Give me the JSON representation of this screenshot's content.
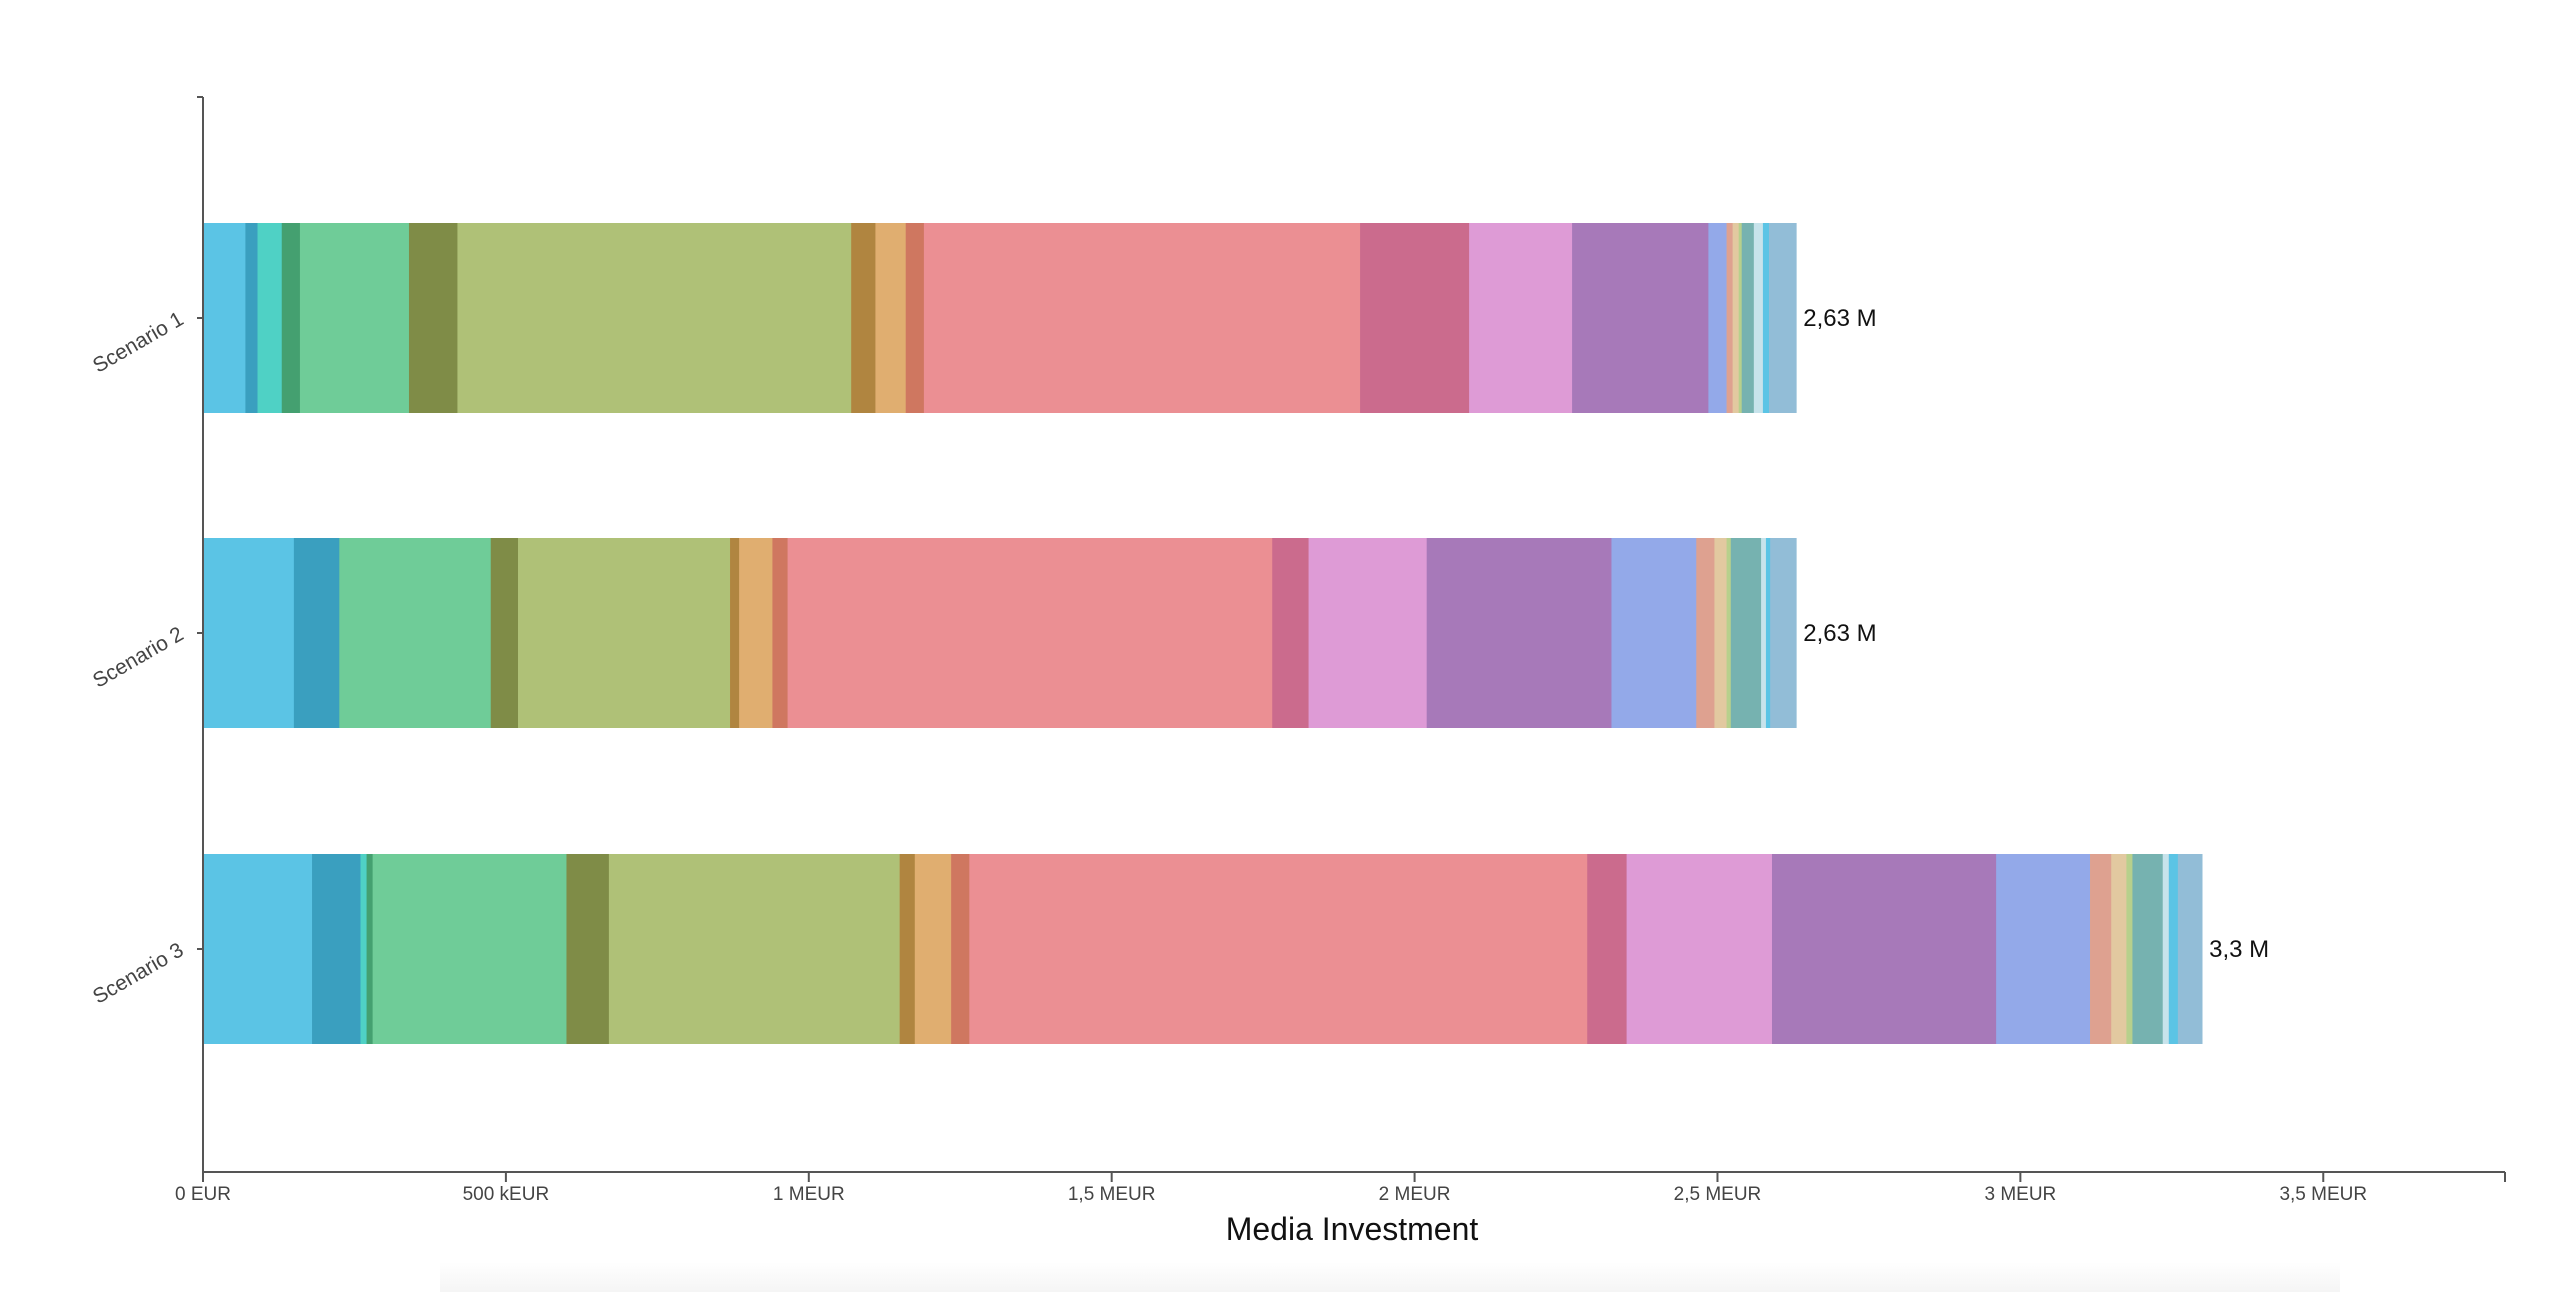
{
  "chart_data": {
    "type": "bar",
    "orientation": "horizontal",
    "stacked": true,
    "title": "",
    "xlabel": "Media Investment",
    "ylabel": "",
    "xlim": [
      0,
      3800000
    ],
    "grid": false,
    "legend": "none",
    "x_ticks": [
      {
        "value": 0,
        "label": "0 EUR"
      },
      {
        "value": 500000,
        "label": "500 kEUR"
      },
      {
        "value": 1000000,
        "label": "1 MEUR"
      },
      {
        "value": 1500000,
        "label": "1,5 MEUR"
      },
      {
        "value": 2000000,
        "label": "2 MEUR"
      },
      {
        "value": 2500000,
        "label": "2,5 MEUR"
      },
      {
        "value": 3000000,
        "label": "3 MEUR"
      },
      {
        "value": 3500000,
        "label": "3,5 MEUR"
      }
    ],
    "categories": [
      "Scenario 1",
      "Scenario 2",
      "Scenario 3"
    ],
    "totals": [
      "2,63 M",
      "2,63 M",
      "3,3 M"
    ],
    "segment_colors": [
      "#5bc4e5",
      "#3a9fbf",
      "#4fd1c5",
      "#44a070",
      "#6fcc98",
      "#7f8c47",
      "#afc177",
      "#b08540",
      "#e0ae70",
      "#cf7760",
      "#eb8f93",
      "#cb6b8d",
      "#de9bd6",
      "#a779b9",
      "#93a9e9",
      "#dea190",
      "#e2c9a0",
      "#b7d08c",
      "#76b2b0",
      "#c7e3eb",
      "#5bc4e5",
      "#92bdd7"
    ],
    "series_values": [
      [
        70000,
        20000,
        40000,
        30000,
        180000,
        80000,
        650000,
        40000,
        50000,
        30000,
        720000,
        180000,
        170000,
        225000,
        30000,
        10000,
        10000,
        5000,
        20000,
        15000,
        10000,
        45000
      ],
      [
        150000,
        75000,
        0,
        0,
        250000,
        45000,
        350000,
        15000,
        55000,
        25000,
        800000,
        60000,
        195000,
        305000,
        140000,
        30000,
        20000,
        7000,
        50000,
        8000,
        7000,
        43000
      ],
      [
        180000,
        80000,
        10000,
        10000,
        320000,
        70000,
        480000,
        25000,
        60000,
        30000,
        1020000,
        65000,
        240000,
        370000,
        155000,
        35000,
        25000,
        10000,
        50000,
        10000,
        15000,
        40000
      ]
    ]
  }
}
